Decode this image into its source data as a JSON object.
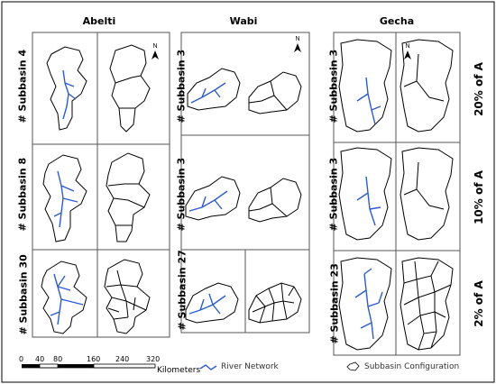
{
  "columns": [
    {
      "title": "Abelti",
      "rows": [
        "# Subbasin 4",
        "# Subbasin 8",
        "# Subbasin 30"
      ]
    },
    {
      "title": "Wabi",
      "rows": [
        "# Subbasin 3",
        "# Subbasin 3",
        "# Subbasin 27"
      ]
    },
    {
      "title": "Gecha",
      "rows": [
        "# Subbasin 3",
        "# Subbasin 3",
        "# Subbasin 23"
      ]
    }
  ],
  "thresholds": [
    "20% of A",
    "10% of A",
    "2% of A"
  ],
  "north_label": "N",
  "scale": {
    "ticks": [
      "0",
      "40",
      "80",
      "160",
      "240",
      "320"
    ],
    "unit": "Kilometers"
  },
  "legend": {
    "river": "River Network",
    "subbasin": "Subbasin Configuration"
  },
  "colors": {
    "river": "#2a5bd7",
    "outline": "#000000",
    "panel_border": "#555555"
  }
}
